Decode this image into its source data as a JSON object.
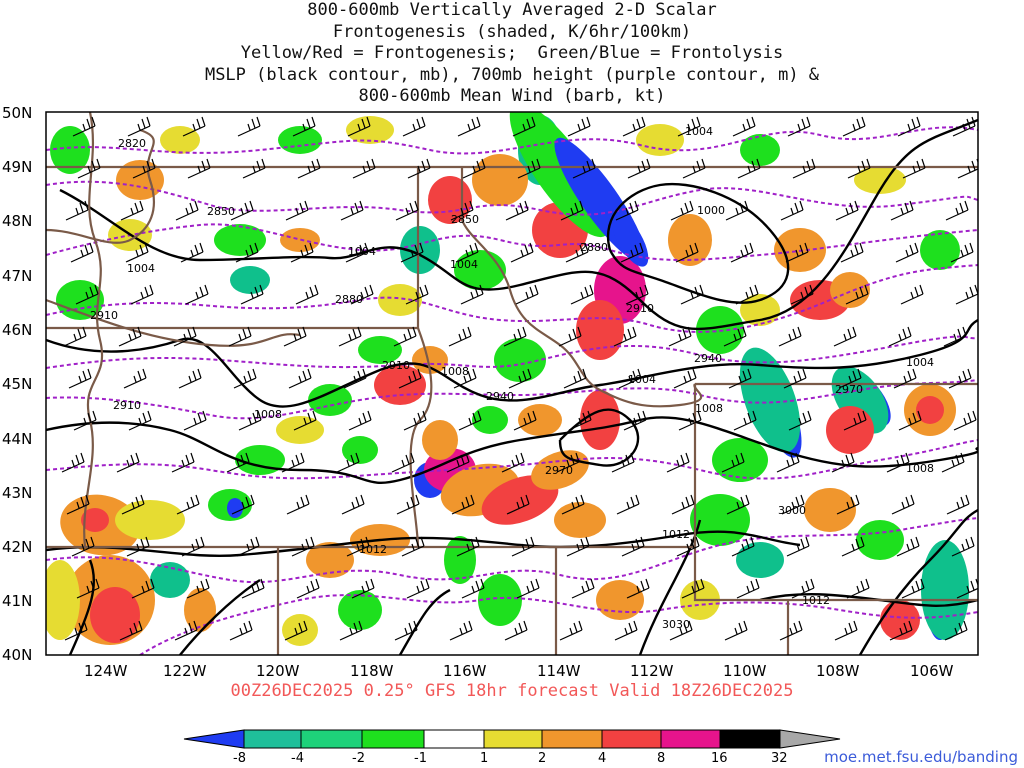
{
  "title": {
    "lines": [
      "800-600mb Vertically Averaged 2-D Scalar",
      "Frontogenesis (shaded, K/6hr/100km)",
      "Yellow/Red = Frontogenesis;  Green/Blue = Frontolysis",
      "MSLP (black contour, mb), 700mb height (purple contour, m) &",
      "800-600mb Mean Wind (barb, kt)"
    ]
  },
  "map": {
    "lat_labels": [
      "50N",
      "49N",
      "48N",
      "47N",
      "46N",
      "45N",
      "44N",
      "43N",
      "42N",
      "41N",
      "40N"
    ],
    "lon_labels": [
      "124W",
      "122W",
      "120W",
      "118W",
      "116W",
      "114W",
      "112W",
      "110W",
      "108W",
      "106W"
    ],
    "mslp_labels": [
      "1004",
      "1000",
      "1004",
      "1004",
      "1008",
      "1004",
      "1008",
      "1004",
      "1008",
      "1008",
      "1012",
      "1012",
      "1012",
      "1004"
    ],
    "height_labels": [
      "2820",
      "2850",
      "2850",
      "2880",
      "2880",
      "2910",
      "2910",
      "2910",
      "2940",
      "2940",
      "2970",
      "2970",
      "3000",
      "3030",
      "2910"
    ],
    "colors": {
      "frontolysis_strong": "#1f3cf2",
      "frontolysis": "#0fc08c",
      "frontolysis_weak": "#1ee01e",
      "frontogenesis_weak": "#e6dc32",
      "frontogenesis": "#f0962d",
      "frontogenesis_strong": "#f24141",
      "frontogenesis_extreme": "#e6148c",
      "mslp": "#000000",
      "height": "#a020c8",
      "borders": "#7a5a48"
    }
  },
  "valid": "00Z26DEC2025 0.25° GFS 18hr forecast Valid 18Z26DEC2025",
  "legend": {
    "ticks": [
      "-8",
      "-4",
      "-2",
      "-1",
      "1",
      "2",
      "4",
      "8",
      "16",
      "32"
    ],
    "colors": [
      "#1f3cf2",
      "#1fbf9a",
      "#1ed27a",
      "#1ee01e",
      "#ffffff",
      "#e6dc32",
      "#f0962d",
      "#f24141",
      "#e6148c",
      "#000000",
      "#a8a8a8"
    ]
  },
  "credit": "moe.met.fsu.edu/banding"
}
